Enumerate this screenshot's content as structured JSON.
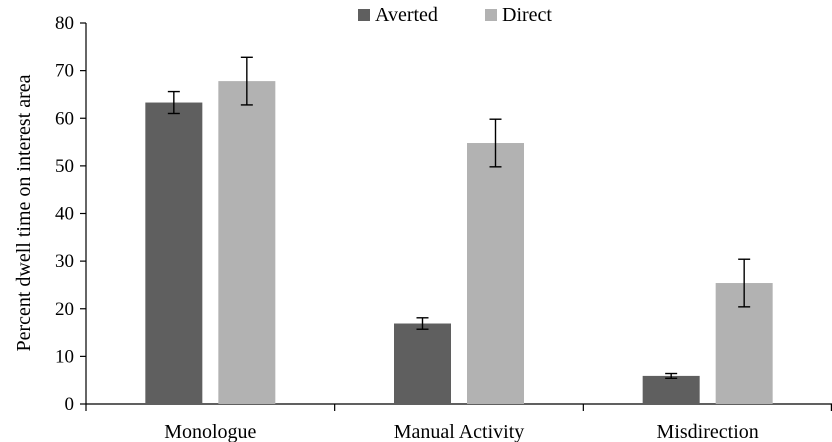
{
  "chart_data": {
    "type": "bar",
    "title": "",
    "xlabel": "",
    "ylabel": "Percent dwell time on interest area",
    "categories": [
      "Monologue",
      "Manual Activity",
      "Misdirection"
    ],
    "series": [
      {
        "name": "Averted",
        "color": "#5f5f5f",
        "values": [
          63.3,
          16.9,
          5.9
        ],
        "error": [
          2.3,
          1.2,
          0.5
        ]
      },
      {
        "name": "Direct",
        "color": "#b2b2b2",
        "values": [
          67.8,
          54.8,
          25.4
        ],
        "error": [
          5.0,
          5.0,
          5.0
        ]
      }
    ],
    "ylim": [
      0,
      80
    ],
    "yticks": [
      0,
      10,
      20,
      30,
      40,
      50,
      60,
      70,
      80
    ],
    "grid": false,
    "legend": "top-center"
  }
}
